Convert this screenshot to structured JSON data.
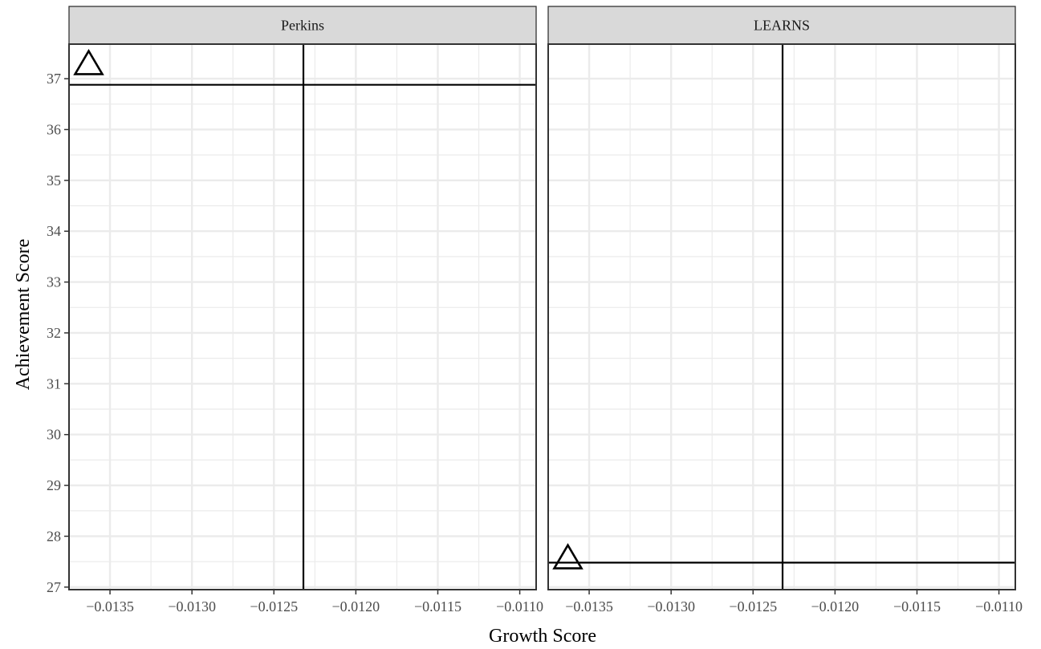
{
  "chart_data": {
    "type": "scatter",
    "xlabel": "Growth Score",
    "ylabel": "Achievement Score",
    "xlim": [
      -0.01375,
      -0.0109
    ],
    "ylim": [
      26.95,
      37.68
    ],
    "x_ticks": [
      -0.0135,
      -0.013,
      -0.0125,
      -0.012,
      -0.0115,
      -0.011
    ],
    "x_tick_labels": [
      "−0.0135",
      "−0.0130",
      "−0.0125",
      "−0.0120",
      "−0.0115",
      "−0.0110"
    ],
    "y_ticks": [
      27,
      28,
      29,
      30,
      31,
      32,
      33,
      34,
      35,
      36,
      37
    ],
    "y_tick_labels": [
      "27",
      "28",
      "29",
      "30",
      "31",
      "32",
      "33",
      "34",
      "35",
      "36",
      "37"
    ],
    "grid": true,
    "point_shape": "open-triangle",
    "panels": [
      {
        "name": "Perkins",
        "points": [
          {
            "x": -0.01363,
            "y": 37.29
          }
        ],
        "vline": -0.01232,
        "hline": 36.88
      },
      {
        "name": "LEARNS",
        "points": [
          {
            "x": -0.01363,
            "y": 27.57
          }
        ],
        "vline": -0.01232,
        "hline": 27.48
      }
    ]
  },
  "colors": {
    "strip_bg": "#d9d9d9",
    "grid": "#ebebeb",
    "frame": "#333333",
    "ref_line": "#000000",
    "tick_text": "#4d4d4d"
  }
}
